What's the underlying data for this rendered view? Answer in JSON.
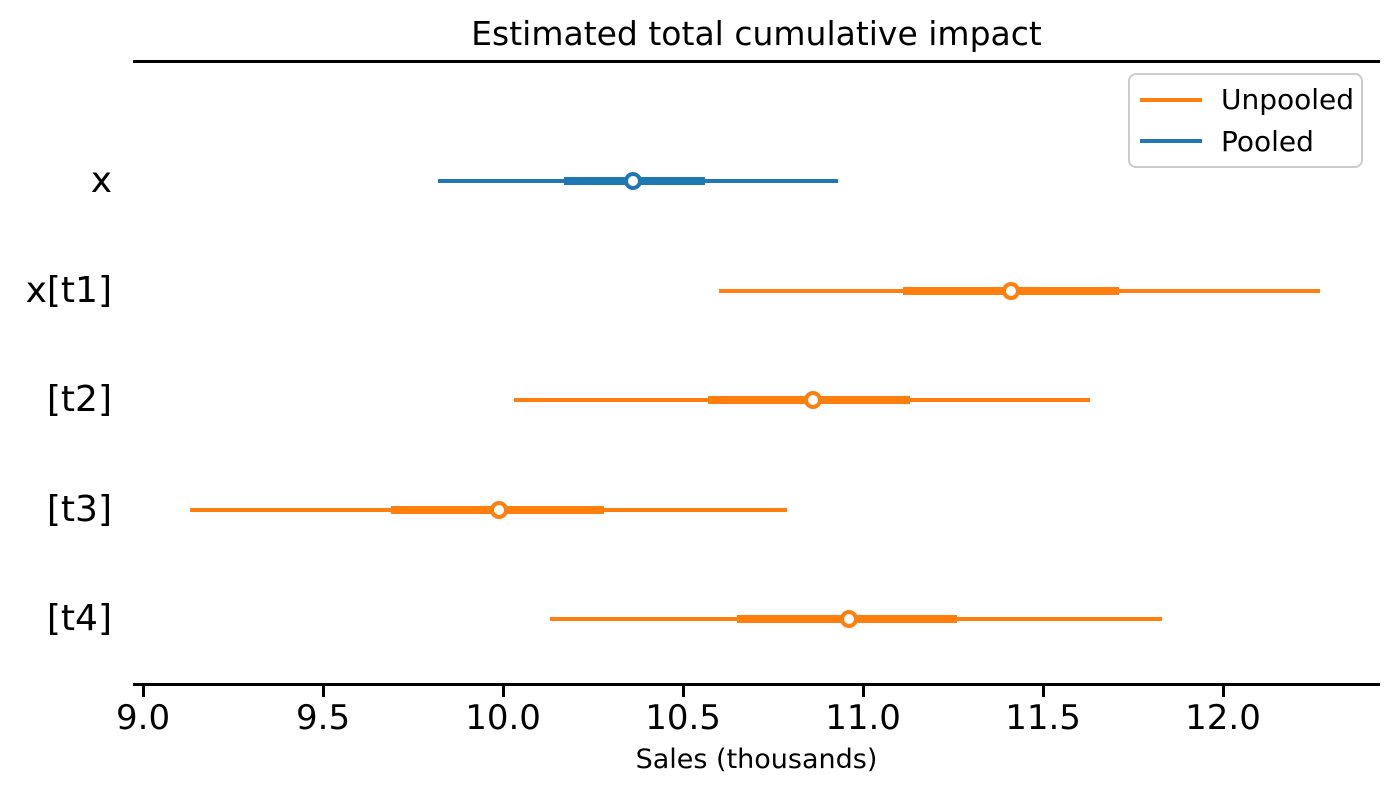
{
  "chart_data": {
    "type": "forest",
    "title": "Estimated total cumulative impact",
    "xlabel": "Sales (thousands)",
    "xlim": [
      8.972,
      12.436
    ],
    "x_ticks": [
      9.0,
      9.5,
      10.0,
      10.5,
      11.0,
      11.5,
      12.0
    ],
    "grid": false,
    "legend_position": "upper right",
    "legend": [
      {
        "label": "Unpooled",
        "color": "#ff7f0e"
      },
      {
        "label": "Pooled",
        "color": "#1f77b4"
      }
    ],
    "rows": [
      {
        "label": "x",
        "series": "Pooled",
        "color": "#1f77b4",
        "whisker_lo": 9.82,
        "whisker_hi": 10.93,
        "band_lo": 10.17,
        "band_hi": 10.56,
        "point": 10.36
      },
      {
        "label": "x[t1]",
        "series": "Unpooled",
        "color": "#ff7f0e",
        "whisker_lo": 10.6,
        "whisker_hi": 12.27,
        "band_lo": 11.11,
        "band_hi": 11.71,
        "point": 11.41
      },
      {
        "label": "[t2]",
        "series": "Unpooled",
        "color": "#ff7f0e",
        "whisker_lo": 10.03,
        "whisker_hi": 11.63,
        "band_lo": 10.57,
        "band_hi": 11.13,
        "point": 10.86
      },
      {
        "label": "[t3]",
        "series": "Unpooled",
        "color": "#ff7f0e",
        "whisker_lo": 9.13,
        "whisker_hi": 10.79,
        "band_lo": 9.69,
        "band_hi": 10.28,
        "point": 9.99
      },
      {
        "label": "[t4]",
        "series": "Unpooled",
        "color": "#ff7f0e",
        "whisker_lo": 10.13,
        "whisker_hi": 11.83,
        "band_lo": 10.65,
        "band_hi": 11.26,
        "point": 10.96
      }
    ],
    "marker_fill": "#ffffff",
    "axis_color": "#000000"
  }
}
